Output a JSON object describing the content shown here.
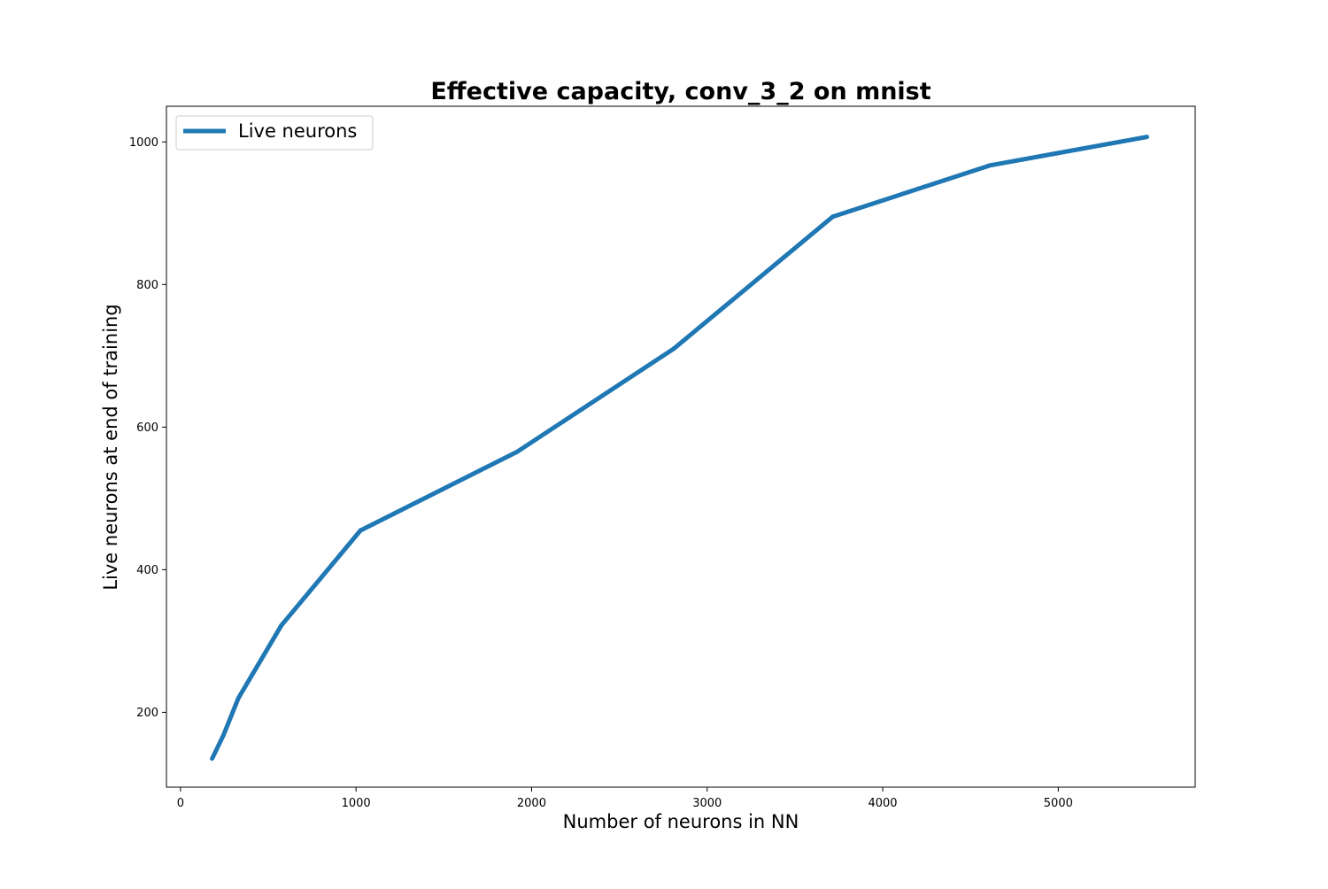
{
  "chart_data": {
    "type": "line",
    "title": "Effective capacity, conv_3_2 on mnist",
    "xlabel": "Number of neurons in NN",
    "ylabel": "Live neurons at end of training",
    "xlim": [
      -80,
      5780
    ],
    "ylim": [
      95,
      1050
    ],
    "xticks": [
      0,
      1000,
      2000,
      3000,
      4000,
      5000
    ],
    "yticks": [
      200,
      400,
      600,
      800,
      1000
    ],
    "grid": false,
    "legend_position": "top-left",
    "series": [
      {
        "name": "Live neurons",
        "color": "#1f77b4",
        "x": [
          180,
          245,
          330,
          575,
          1025,
          1915,
          2810,
          3715,
          4610,
          5505
        ],
        "y": [
          135,
          168,
          220,
          322,
          455,
          565,
          710,
          895,
          967,
          1007
        ]
      }
    ]
  }
}
